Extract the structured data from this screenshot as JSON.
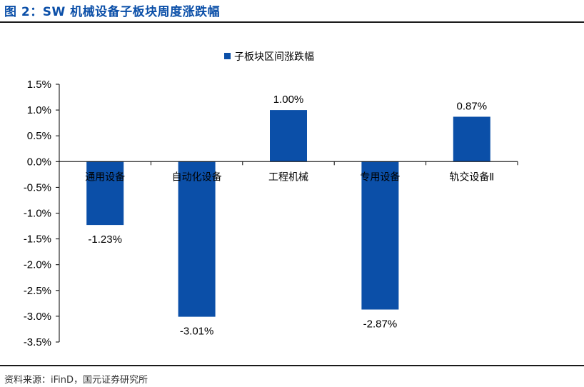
{
  "header": {
    "title": "图 2：SW 机械设备子板块周度涨跌幅"
  },
  "footer": {
    "source": "资料来源：iFinD，国元证券研究所"
  },
  "colors": {
    "bar": "#0b4fa8",
    "title": "#0b4fa8"
  },
  "chart_data": {
    "type": "bar",
    "title": "",
    "xlabel": "",
    "ylabel": "",
    "categories": [
      "通用设备",
      "自动化设备",
      "工程机械",
      "专用设备",
      "轨交设备Ⅱ"
    ],
    "series": [
      {
        "name": "子板块区间涨跌幅",
        "values": [
          -1.23,
          -3.01,
          1.0,
          -2.87,
          0.87
        ]
      }
    ],
    "data_labels": [
      "-1.23%",
      "-3.01%",
      "1.00%",
      "-2.87%",
      "0.87%"
    ],
    "ylim": [
      -3.5,
      1.5
    ],
    "yticks": [
      1.5,
      1.0,
      0.5,
      0.0,
      -0.5,
      -1.0,
      -1.5,
      -2.0,
      -2.5,
      -3.0,
      -3.5
    ],
    "ytick_labels": [
      "1.5%",
      "1.0%",
      "0.5%",
      "0.0%",
      "-0.5%",
      "-1.0%",
      "-1.5%",
      "-2.0%",
      "-2.5%",
      "-3.0%",
      "-3.5%"
    ],
    "legend_position": "top-center",
    "grid": false
  }
}
